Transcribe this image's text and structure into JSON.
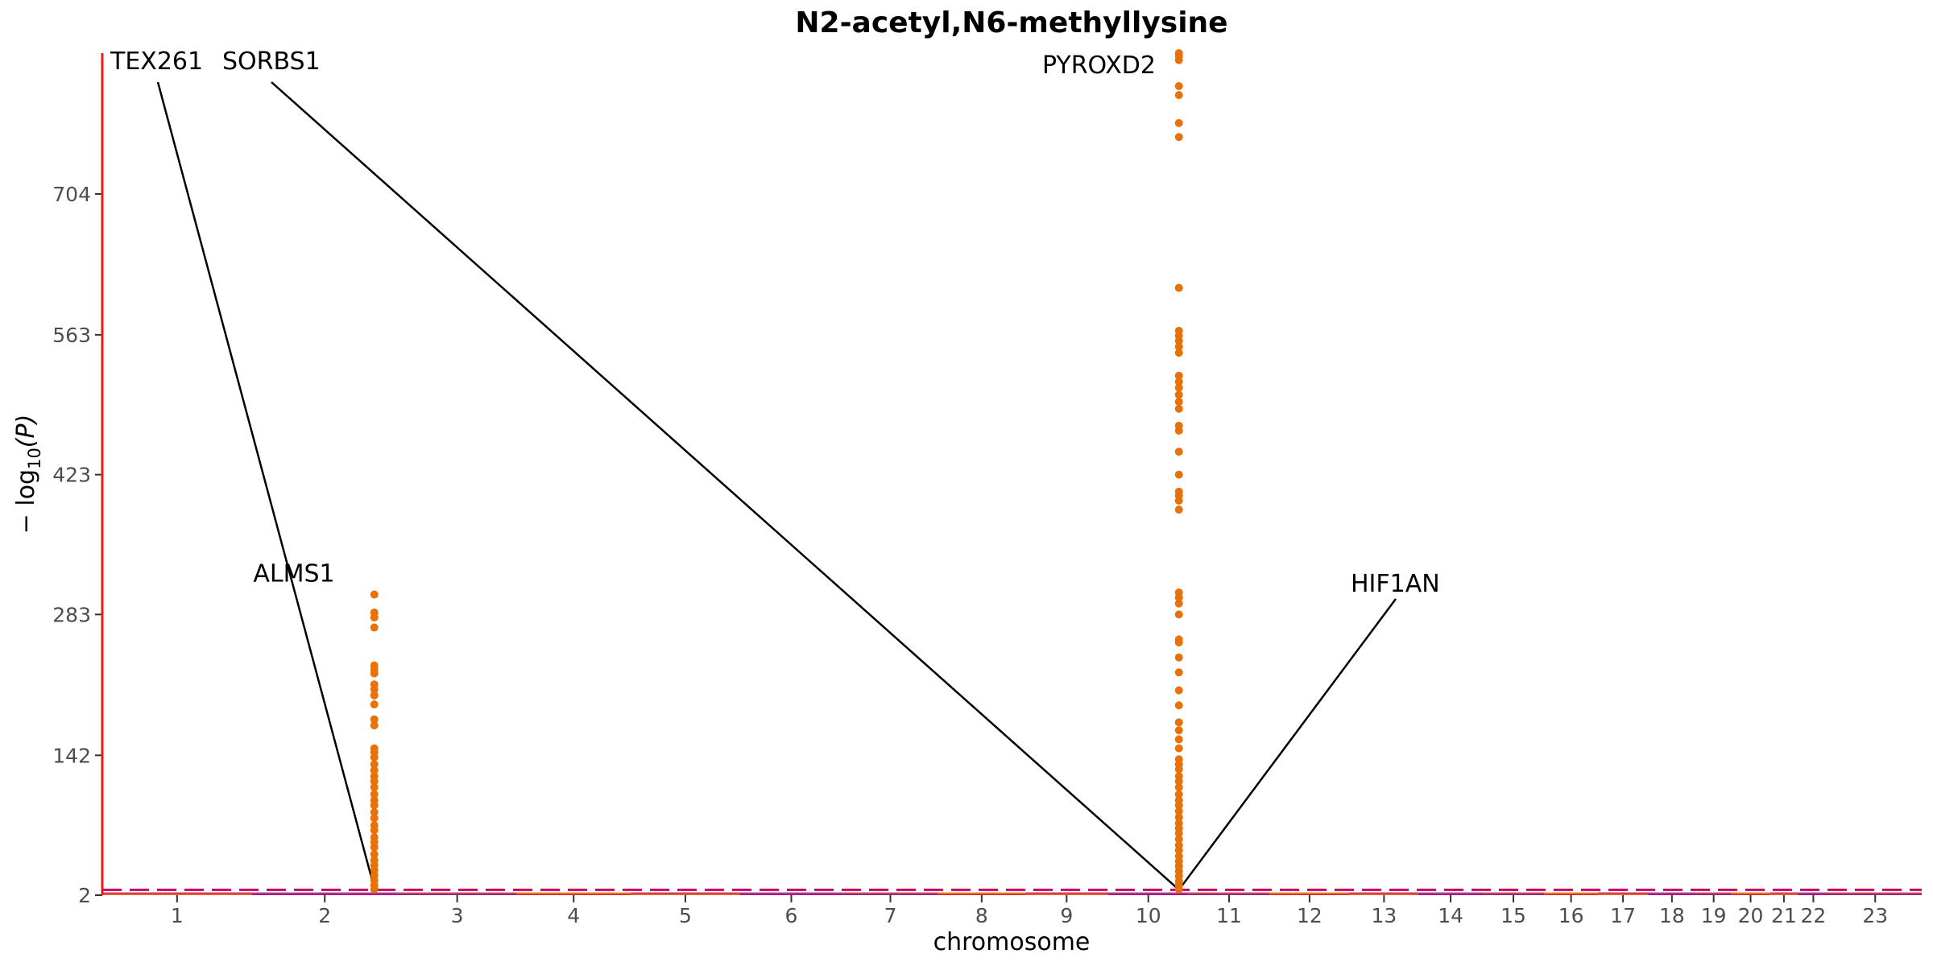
{
  "chart_data": {
    "type": "scatter",
    "subtype": "manhattan",
    "title": "N2-acetyl,N6-methyllysine",
    "xlabel": "chromosome",
    "ylabel_prefix": "− log",
    "ylabel_subscript": "10",
    "ylabel_suffix": "(P)",
    "ylim": [
      2,
      845
    ],
    "y_ticks": [
      2,
      142,
      283,
      423,
      563,
      704
    ],
    "chromosomes": [
      {
        "label": "1",
        "start": 0,
        "end": 249
      },
      {
        "label": "2",
        "start": 249,
        "end": 492
      },
      {
        "label": "3",
        "start": 492,
        "end": 690
      },
      {
        "label": "4",
        "start": 690,
        "end": 880
      },
      {
        "label": "5",
        "start": 880,
        "end": 1062
      },
      {
        "label": "6",
        "start": 1062,
        "end": 1233
      },
      {
        "label": "7",
        "start": 1233,
        "end": 1392
      },
      {
        "label": "8",
        "start": 1392,
        "end": 1537
      },
      {
        "label": "9",
        "start": 1537,
        "end": 1675
      },
      {
        "label": "10",
        "start": 1675,
        "end": 1809
      },
      {
        "label": "11",
        "start": 1809,
        "end": 1944
      },
      {
        "label": "12",
        "start": 1944,
        "end": 2077
      },
      {
        "label": "13",
        "start": 2077,
        "end": 2192
      },
      {
        "label": "14",
        "start": 2192,
        "end": 2299
      },
      {
        "label": "15",
        "start": 2299,
        "end": 2401
      },
      {
        "label": "16",
        "start": 2401,
        "end": 2491
      },
      {
        "label": "17",
        "start": 2491,
        "end": 2574
      },
      {
        "label": "18",
        "start": 2574,
        "end": 2654
      },
      {
        "label": "19",
        "start": 2654,
        "end": 2713
      },
      {
        "label": "20",
        "start": 2713,
        "end": 2777
      },
      {
        "label": "21",
        "start": 2777,
        "end": 2824
      },
      {
        "label": "22",
        "start": 2824,
        "end": 2875
      },
      {
        "label": "23",
        "start": 2875,
        "end": 3030
      }
    ],
    "chromosome_colors": [
      "#e8710a",
      "#c80064",
      "#7b2d8e",
      "#d62728"
    ],
    "significance_line": {
      "y": 7.3,
      "color": "#c80064"
    },
    "peak_color": "#e8710a",
    "peaks": [
      {
        "chromosome": "2",
        "x": 453,
        "y_values": [
          303,
          285,
          280,
          270,
          232,
          228,
          224,
          213,
          208,
          202,
          193,
          178,
          172,
          149,
          145,
          140,
          133,
          127,
          121,
          116,
          110,
          103,
          97,
          92,
          85,
          79,
          72,
          67,
          60,
          55,
          50,
          43,
          37,
          32,
          27,
          22,
          17,
          12,
          8
        ]
      },
      {
        "chromosome": "10",
        "x": 1793,
        "y_values": [
          845,
          842,
          838,
          812,
          803,
          775,
          761,
          610,
          567,
          562,
          557,
          551,
          545,
          522,
          516,
          510,
          503,
          496,
          489,
          472,
          467,
          446,
          423,
          406,
          402,
          397,
          388,
          305,
          300,
          294,
          283,
          258,
          255,
          240,
          225,
          207,
          192,
          175,
          167,
          158,
          149,
          138,
          133,
          128,
          121,
          116,
          110,
          103,
          97,
          92,
          86,
          80,
          74,
          69,
          64,
          58,
          52,
          47,
          41,
          36,
          31,
          26,
          21,
          16,
          12,
          8
        ]
      }
    ],
    "annotations": [
      {
        "label": "TEX261",
        "anchor": "start",
        "ty": 829,
        "tip_x": 453,
        "tip_y": 9,
        "lx_chr": 0.08
      },
      {
        "label": "SORBS1",
        "anchor": "start",
        "ty": 829,
        "tip_x": 1790,
        "tip_y": 9,
        "lx_chr": 0.0
      },
      {
        "label": "ALMS1",
        "anchor": "middle",
        "ty": 316,
        "tip_x": 453,
        "tip_y": 303
      },
      {
        "label": "PYROXD2",
        "anchor": "end",
        "ty": 825,
        "tip_x": 1793,
        "tip_y": 828
      },
      {
        "label": "HIF1AN",
        "anchor": "start",
        "ty": 306,
        "tip_x": 1795,
        "tip_y": 9
      }
    ]
  }
}
